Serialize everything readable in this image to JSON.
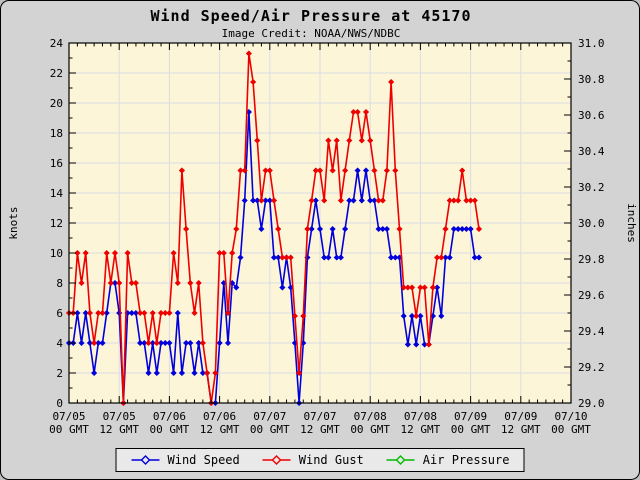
{
  "window": {
    "background": "#d3d3d3"
  },
  "chart_data": {
    "type": "line",
    "title": "Wind Speed/Air Pressure at 45170",
    "subtitle": "Image Credit: NOAA/NWS/NDBC",
    "station": "45170",
    "ylabel_left": "knots",
    "ylabel_right": "inches",
    "grid": true,
    "legend_position": "bottom",
    "plot_bg_color": "#fdf5d7",
    "grid_color": "#d9dce5",
    "axis_color": "#000000",
    "x_axis": {
      "unit": "hours",
      "min": 0,
      "max": 120,
      "major_step": 12,
      "minor_step": 2,
      "tick_labels": [
        [
          "07/05",
          "00 GMT"
        ],
        [
          "07/05",
          "12 GMT"
        ],
        [
          "07/06",
          "00 GMT"
        ],
        [
          "07/06",
          "12 GMT"
        ],
        [
          "07/07",
          "00 GMT"
        ],
        [
          "07/07",
          "12 GMT"
        ],
        [
          "07/08",
          "00 GMT"
        ],
        [
          "07/08",
          "12 GMT"
        ],
        [
          "07/09",
          "00 GMT"
        ],
        [
          "07/09",
          "12 GMT"
        ],
        [
          "07/10",
          "00 GMT"
        ]
      ]
    },
    "y_axis_left": {
      "label": "knots",
      "min": 0,
      "max": 24,
      "major_step": 2,
      "minor_step": 1,
      "tick_labels": [
        "0",
        "2",
        "4",
        "6",
        "8",
        "10",
        "12",
        "14",
        "16",
        "18",
        "20",
        "22",
        "24"
      ]
    },
    "y_axis_right": {
      "label": "inches",
      "min": 29.0,
      "max": 31.0,
      "major_step": 0.2,
      "minor_step": 0.1,
      "tick_labels": [
        "29.0",
        "29.2",
        "29.4",
        "29.6",
        "29.8",
        "30.0",
        "30.2",
        "30.4",
        "30.6",
        "30.8",
        "31.0"
      ]
    },
    "series": [
      {
        "name": "Wind Speed",
        "color": "#0000dd",
        "axis": "left",
        "start_hour": 0,
        "interval_hours": 1,
        "values": [
          4,
          4,
          6,
          4,
          6,
          4,
          2,
          4,
          4,
          6,
          8,
          8,
          6,
          0,
          6,
          6,
          6,
          4,
          4,
          2,
          4,
          2,
          4,
          4,
          4,
          2,
          6,
          2,
          4,
          4,
          2,
          4,
          2,
          2,
          0,
          0,
          4,
          8,
          4,
          8,
          7.7,
          9.7,
          13.5,
          19.4,
          13.5,
          13.5,
          11.6,
          13.5,
          13.5,
          9.7,
          9.7,
          7.7,
          9.7,
          7.7,
          4,
          0,
          4,
          9.7,
          11.6,
          13.5,
          11.6,
          9.7,
          9.7,
          11.6,
          9.7,
          9.7,
          11.6,
          13.5,
          13.5,
          15.5,
          13.5,
          15.5,
          13.5,
          13.5,
          11.6,
          11.6,
          11.6,
          9.7,
          9.7,
          9.7,
          5.8,
          3.9,
          5.8,
          3.9,
          5.8,
          3.9,
          3.9,
          5.8,
          7.7,
          5.8,
          9.7,
          9.7,
          11.6,
          11.6,
          11.6,
          11.6,
          11.6,
          9.7,
          9.7
        ]
      },
      {
        "name": "Wind Gust",
        "color": "#ee0000",
        "axis": "left",
        "start_hour": 0,
        "interval_hours": 1,
        "values": [
          6,
          6,
          10,
          8,
          10,
          6,
          4,
          6,
          6,
          10,
          8,
          10,
          8,
          0,
          10,
          8,
          8,
          6,
          6,
          4,
          6,
          4,
          6,
          6,
          6,
          10,
          8,
          15.5,
          11.6,
          8,
          6,
          8,
          4,
          2,
          0,
          2,
          10,
          10,
          6,
          10,
          11.6,
          15.5,
          15.5,
          23.3,
          21.4,
          17.5,
          13.5,
          15.5,
          15.5,
          13.5,
          11.6,
          9.7,
          9.7,
          9.7,
          5.8,
          2,
          5.8,
          11.6,
          13.5,
          15.5,
          15.5,
          13.5,
          17.5,
          15.5,
          17.5,
          13.5,
          15.5,
          17.5,
          19.4,
          19.4,
          17.5,
          19.4,
          17.5,
          15.5,
          13.5,
          13.5,
          15.5,
          21.4,
          15.5,
          11.6,
          7.7,
          7.7,
          7.7,
          5.8,
          7.7,
          7.7,
          3.9,
          7.7,
          9.7,
          9.7,
          11.6,
          13.5,
          13.5,
          13.5,
          15.5,
          13.5,
          13.5,
          13.5,
          11.6
        ]
      },
      {
        "name": "Air Pressure",
        "color": "#00bb00",
        "axis": "right",
        "start_hour": 0,
        "interval_hours": 1,
        "values": []
      }
    ]
  }
}
